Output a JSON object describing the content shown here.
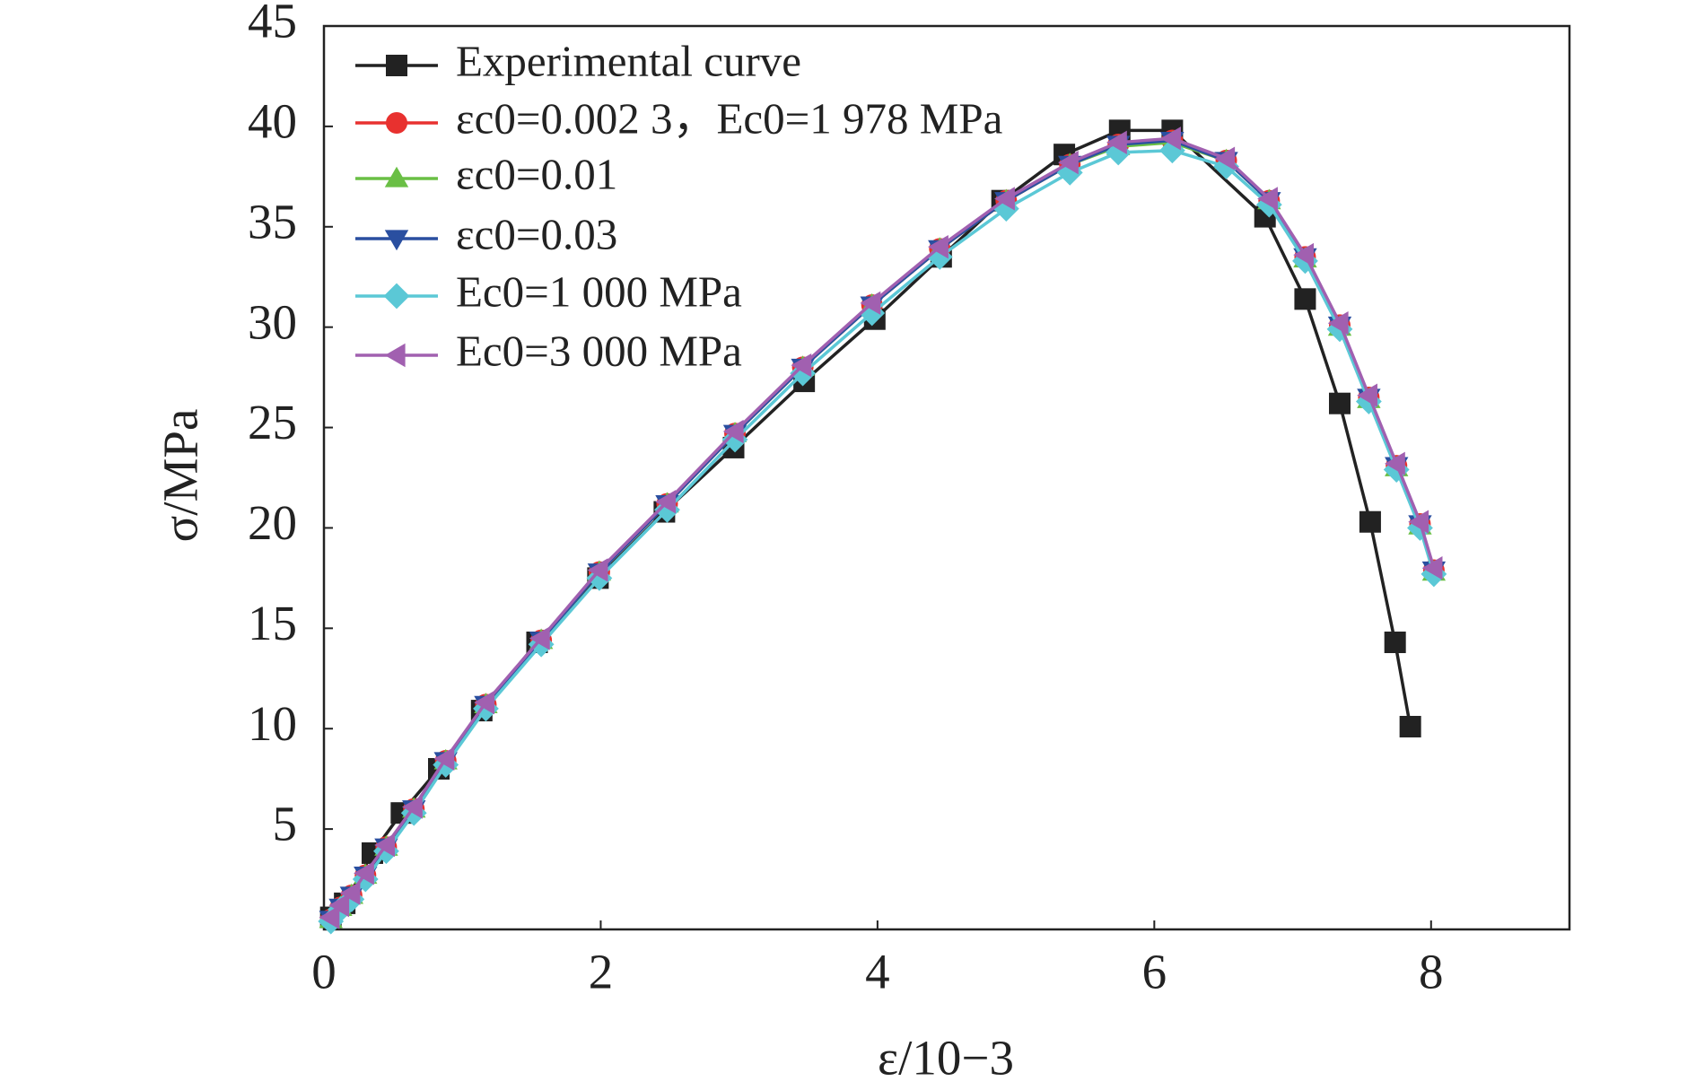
{
  "chart_data": {
    "type": "line",
    "x_label": "ε/10−3",
    "y_label": "σ/MPa",
    "xlim": [
      0,
      9
    ],
    "xticks": [
      0,
      2,
      4,
      6,
      8
    ],
    "ylim": [
      0,
      45
    ],
    "yticks": [
      5,
      10,
      15,
      20,
      25,
      30,
      35,
      40,
      45
    ],
    "grid": false,
    "legend": "upper left",
    "series": [
      {
        "name": "Experimental curve",
        "color": "#222222",
        "marker": "square",
        "x": [
          0.05,
          0.15,
          0.35,
          0.56,
          0.83,
          1.14,
          1.54,
          1.98,
          2.46,
          2.96,
          3.47,
          3.98,
          4.46,
          4.9,
          5.35,
          5.75,
          6.13,
          6.8,
          7.09,
          7.34,
          7.56,
          7.74,
          7.85
        ],
        "values": [
          0.6,
          1.3,
          3.8,
          5.8,
          8.0,
          10.9,
          14.3,
          17.5,
          20.8,
          24.0,
          27.3,
          30.4,
          33.5,
          36.3,
          38.6,
          39.8,
          39.8,
          35.5,
          31.4,
          26.2,
          20.3,
          14.3,
          10.1
        ]
      },
      {
        "name": "εc0=0.002 3，Ec0=1 978 MPa",
        "color": "#e8312f",
        "marker": "circle",
        "x": [
          0.05,
          0.12,
          0.2,
          0.3,
          0.45,
          0.65,
          0.88,
          1.17,
          1.57,
          1.99,
          2.48,
          2.97,
          3.46,
          3.96,
          4.45,
          4.93,
          5.39,
          5.74,
          6.13,
          6.52,
          6.83,
          7.09,
          7.34,
          7.55,
          7.75,
          7.92,
          8.02
        ],
        "values": [
          0.5,
          1.1,
          1.7,
          2.7,
          4.1,
          6.0,
          8.4,
          11.2,
          14.4,
          17.8,
          21.2,
          24.7,
          28.0,
          31.1,
          33.9,
          36.3,
          38.1,
          39.1,
          39.3,
          38.3,
          36.3,
          33.5,
          30.1,
          26.5,
          23.1,
          20.2,
          17.9
        ]
      },
      {
        "name": "εc0=0.01",
        "color": "#6abf45",
        "marker": "triangle-up",
        "x": [
          0.05,
          0.12,
          0.2,
          0.3,
          0.45,
          0.65,
          0.88,
          1.17,
          1.57,
          1.99,
          2.48,
          2.97,
          3.46,
          3.96,
          4.45,
          4.93,
          5.39,
          5.74,
          6.13,
          6.52,
          6.83,
          7.09,
          7.34,
          7.55,
          7.75,
          7.92,
          8.02
        ],
        "values": [
          0.5,
          1.1,
          1.7,
          2.7,
          4.1,
          6.0,
          8.4,
          11.2,
          14.4,
          17.8,
          21.2,
          24.7,
          28.0,
          31.1,
          33.9,
          36.3,
          38.1,
          39.0,
          39.2,
          38.3,
          36.3,
          33.4,
          30.0,
          26.4,
          23.0,
          20.1,
          17.8
        ]
      },
      {
        "name": "εc0=0.03",
        "color": "#2a4fa0",
        "marker": "triangle-down",
        "x": [
          0.05,
          0.12,
          0.2,
          0.3,
          0.45,
          0.65,
          0.88,
          1.17,
          1.57,
          1.99,
          2.48,
          2.97,
          3.46,
          3.96,
          4.45,
          4.93,
          5.39,
          5.74,
          6.13,
          6.52,
          6.83,
          7.09,
          7.34,
          7.55,
          7.75,
          7.92,
          8.02
        ],
        "values": [
          0.5,
          1.1,
          1.7,
          2.7,
          4.1,
          6.0,
          8.4,
          11.2,
          14.4,
          17.8,
          21.2,
          24.7,
          28.0,
          31.1,
          33.9,
          36.3,
          38.1,
          39.1,
          39.3,
          38.3,
          36.3,
          33.5,
          30.1,
          26.5,
          23.1,
          20.2,
          17.9
        ]
      },
      {
        "name": "Ec0=1 000 MPa",
        "color": "#5bc8d6",
        "marker": "diamond",
        "x": [
          0.05,
          0.12,
          0.2,
          0.3,
          0.45,
          0.65,
          0.88,
          1.17,
          1.57,
          1.99,
          2.48,
          2.97,
          3.46,
          3.96,
          4.45,
          4.93,
          5.39,
          5.74,
          6.13,
          6.52,
          6.83,
          7.09,
          7.34,
          7.55,
          7.75,
          7.92,
          8.02
        ],
        "values": [
          0.4,
          1.0,
          1.5,
          2.5,
          3.9,
          5.8,
          8.2,
          11.0,
          14.2,
          17.5,
          20.9,
          24.4,
          27.7,
          30.7,
          33.5,
          35.9,
          37.7,
          38.7,
          38.8,
          38.0,
          36.1,
          33.3,
          29.9,
          26.3,
          22.9,
          20.0,
          17.7
        ]
      },
      {
        "name": "Ec0=3 000 MPa",
        "color": "#a160b0",
        "marker": "triangle-left",
        "x": [
          0.05,
          0.12,
          0.2,
          0.3,
          0.45,
          0.65,
          0.88,
          1.17,
          1.57,
          1.99,
          2.48,
          2.97,
          3.46,
          3.96,
          4.45,
          4.93,
          5.39,
          5.74,
          6.13,
          6.52,
          6.83,
          7.09,
          7.34,
          7.55,
          7.75,
          7.92,
          8.02
        ],
        "values": [
          0.6,
          1.2,
          1.8,
          2.8,
          4.2,
          6.1,
          8.5,
          11.3,
          14.5,
          17.9,
          21.3,
          24.8,
          28.1,
          31.2,
          34.0,
          36.4,
          38.2,
          39.2,
          39.4,
          38.4,
          36.4,
          33.6,
          30.2,
          26.6,
          23.2,
          20.3,
          18.0
        ]
      }
    ]
  }
}
